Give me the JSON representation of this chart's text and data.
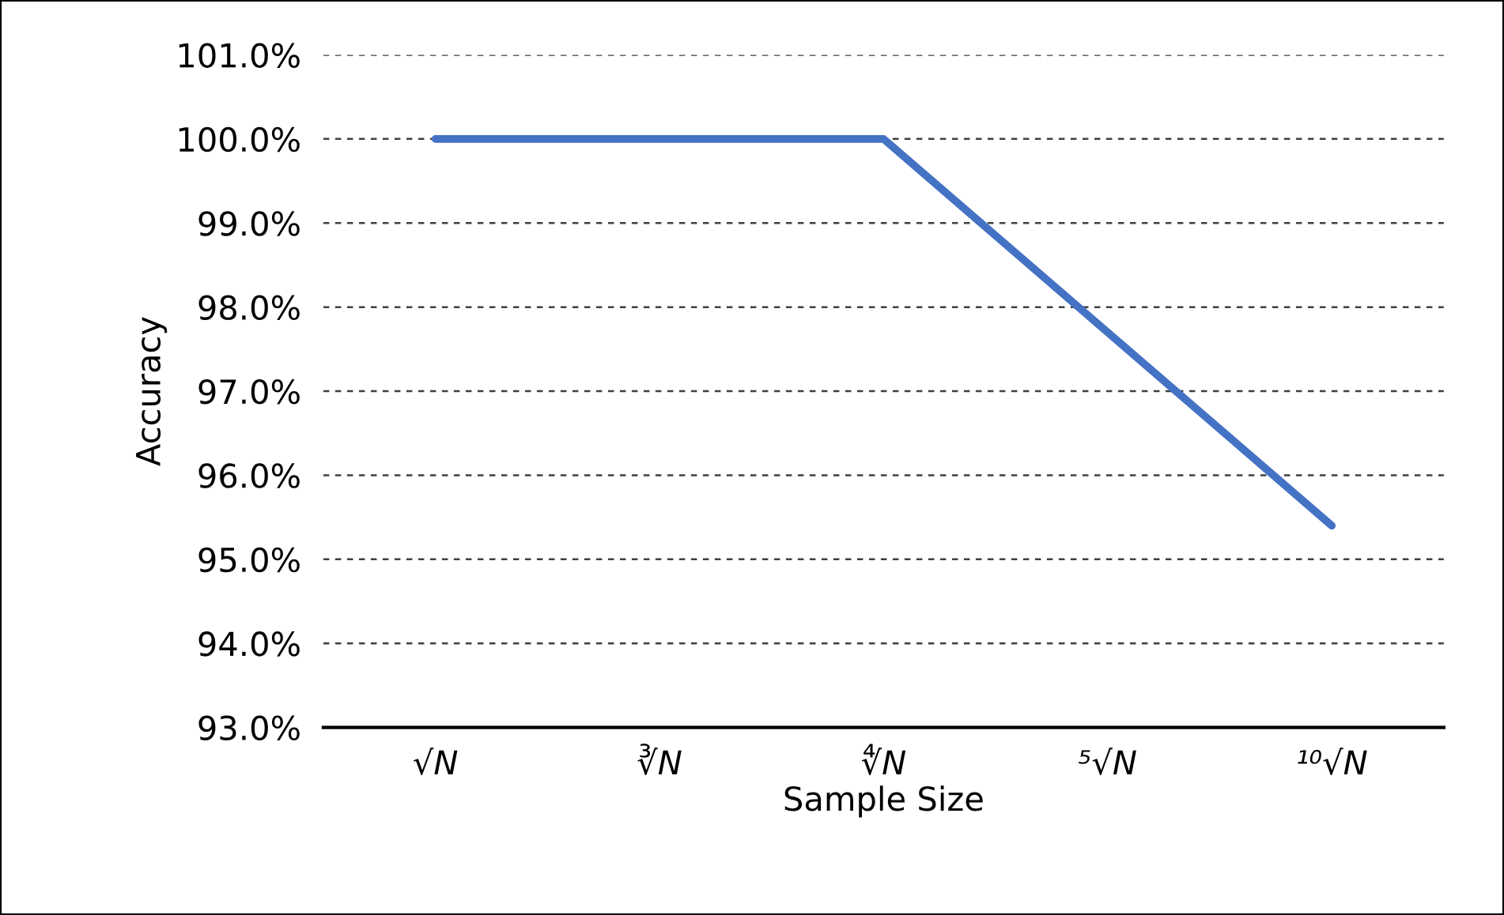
{
  "chart_data": {
    "type": "line",
    "xlabel": "Sample Size",
    "ylabel": "Accuracy",
    "categories": [
      "√N",
      "∛N",
      "∜N",
      "⁵√N",
      "¹⁰√N"
    ],
    "series": [
      {
        "color": "#4472c4",
        "values": [
          100.0,
          100.0,
          100.0,
          97.7,
          95.4
        ]
      }
    ],
    "ylim": [
      93,
      101
    ],
    "yticks": [
      {
        "value": 93,
        "label": "93.0%"
      },
      {
        "value": 94,
        "label": "94.0%"
      },
      {
        "value": 95,
        "label": "95.0%"
      },
      {
        "value": 96,
        "label": "96.0%"
      },
      {
        "value": 97,
        "label": "97.0%"
      },
      {
        "value": 98,
        "label": "98.0%"
      },
      {
        "value": 99,
        "label": "99.0%"
      },
      {
        "value": 100,
        "label": "100.0%"
      },
      {
        "value": 101,
        "label": "101.0%"
      }
    ],
    "grid": "y",
    "marker": "none",
    "line_style": "solid"
  }
}
